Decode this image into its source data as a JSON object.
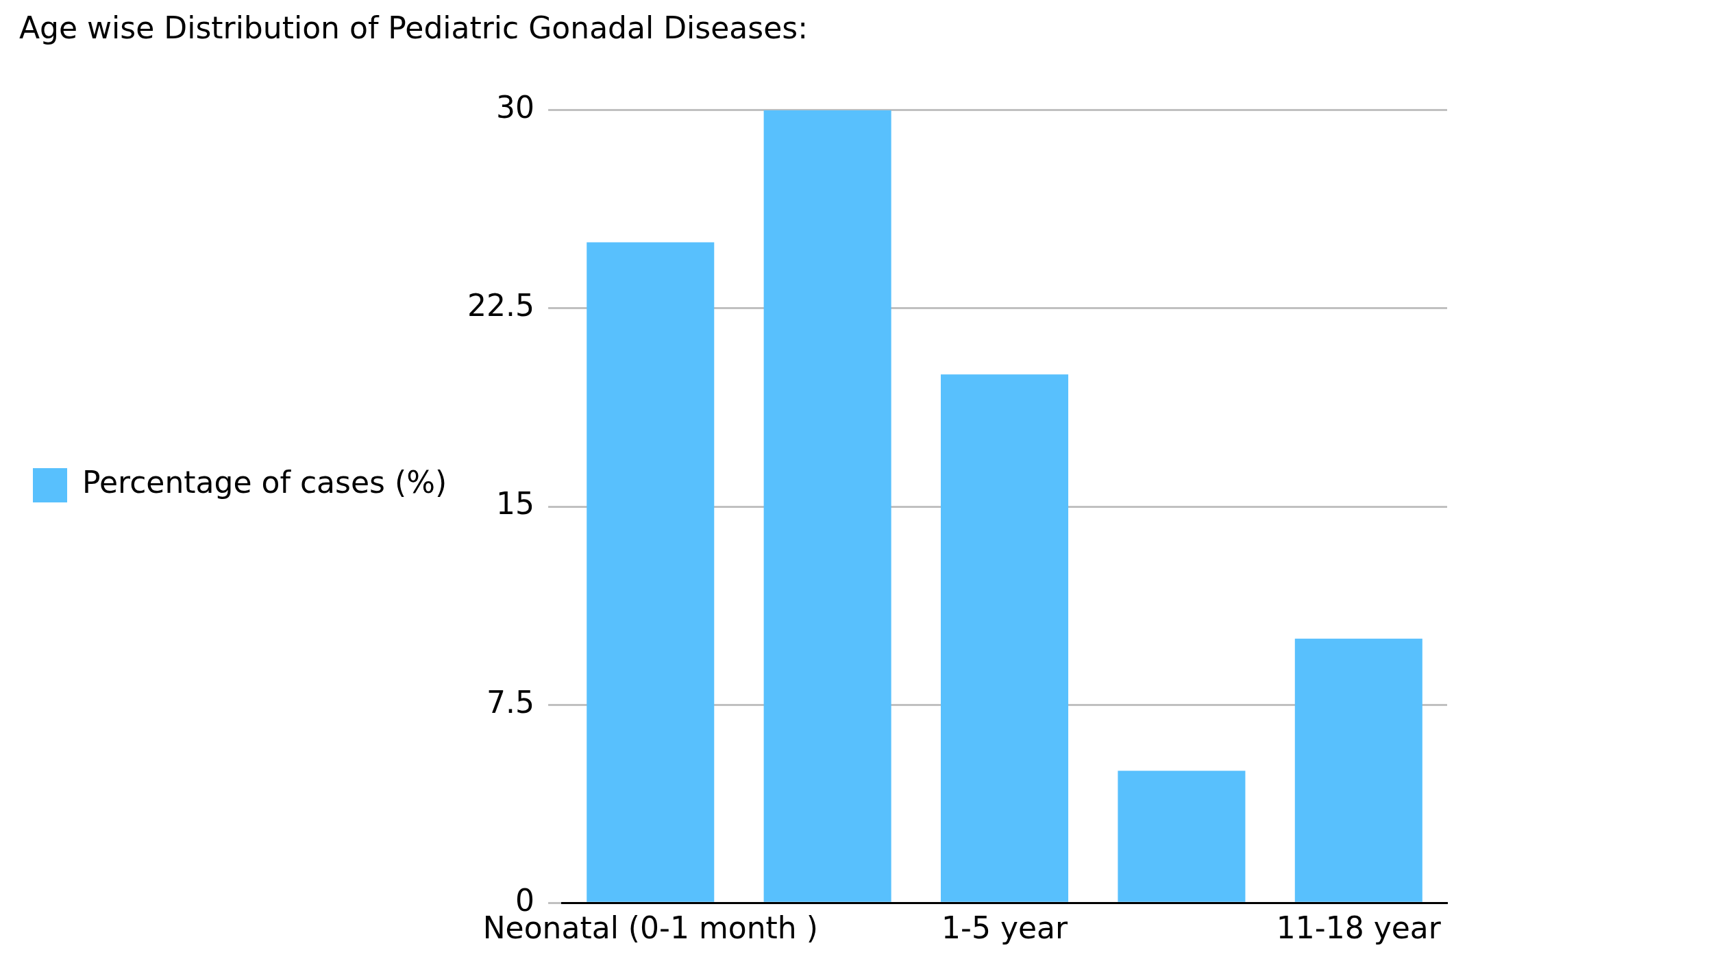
{
  "chart_data": {
    "type": "bar",
    "title": "Age wise Distribution of Pediatric Gonadal Diseases:",
    "categories": [
      "Neonatal (0-1 month )",
      null,
      "1-5 year",
      null,
      "11-18 year"
    ],
    "series": [
      {
        "name": "Percentage of cases (%)",
        "color": "#58c0fd",
        "values": [
          25,
          30,
          20,
          5,
          10
        ]
      }
    ],
    "ylim": [
      0,
      30
    ],
    "yticks": [
      0,
      7.5,
      15,
      22.5,
      30
    ],
    "grid": "y",
    "legend": "left"
  }
}
